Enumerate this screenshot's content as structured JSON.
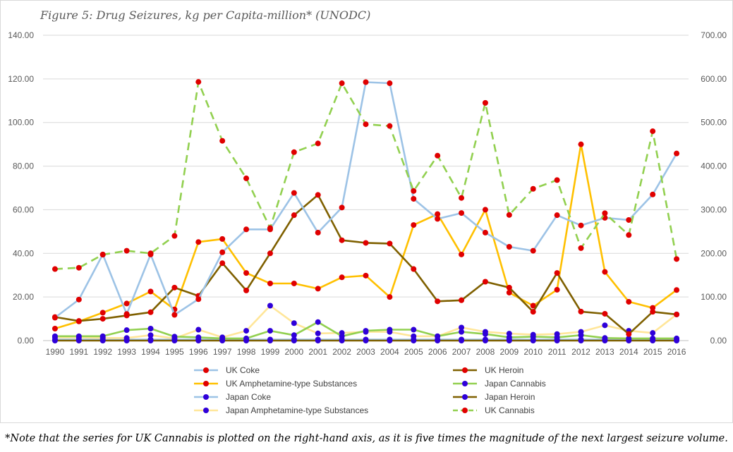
{
  "figure": {
    "title": "Figure 5: Drug Seizures, kg per Capita-million* (UNODC)",
    "footnote": "*Note that the series for UK Cannabis is plotted on the right-hand axis, as it is five times the magnitude of the next largest seizure volume."
  },
  "chart_data": {
    "type": "line",
    "title": "Figure 5: Drug Seizures, kg per Capita-million* (UNODC)",
    "categories": [
      "1990",
      "1991",
      "1992",
      "1993",
      "1994",
      "1995",
      "1996",
      "1997",
      "1998",
      "1999",
      "2000",
      "2001",
      "2002",
      "2003",
      "2004",
      "2005",
      "2006",
      "2007",
      "2008",
      "2009",
      "2010",
      "2011",
      "2012",
      "2013",
      "2014",
      "2015",
      "2016"
    ],
    "y_left": {
      "min": 0,
      "max": 140,
      "step": 20,
      "tick_labels": [
        "0.00",
        "20.00",
        "40.00",
        "60.00",
        "80.00",
        "100.00",
        "120.00",
        "140.00"
      ]
    },
    "y_right": {
      "min": 0,
      "max": 700,
      "step": 100,
      "tick_labels": [
        "0.00",
        "100.00",
        "200.00",
        "300.00",
        "400.00",
        "500.00",
        "600.00",
        "700.00"
      ]
    },
    "grid": true,
    "legend_position": "bottom",
    "series": [
      {
        "name": "UK Coke",
        "axis": "left",
        "line_color": "#9dc3e6",
        "marker_color": "#e00000",
        "dashed": false,
        "values": [
          10.5,
          18.8,
          39.5,
          12.2,
          39.5,
          11.8,
          19,
          40.5,
          51,
          51,
          67.7,
          49.5,
          61,
          118.5,
          118,
          65,
          55.8,
          58.5,
          49.5,
          43,
          41.2,
          57.5,
          52.8,
          56.3,
          55.3,
          67,
          85.8
        ]
      },
      {
        "name": "UK Heroin",
        "axis": "left",
        "line_color": "#7f6000",
        "marker_color": "#e00000",
        "dashed": false,
        "values": [
          10.8,
          9,
          10,
          11.5,
          13,
          24.3,
          20.5,
          35.5,
          23,
          40,
          57.5,
          66.8,
          46,
          44.8,
          44.5,
          32.8,
          18,
          18.5,
          27,
          24.3,
          13.2,
          31,
          13.3,
          12.3,
          3,
          13.2,
          12
        ]
      },
      {
        "name": "UK Amphetamine-type Substances",
        "axis": "left",
        "line_color": "#ffc000",
        "marker_color": "#e00000",
        "dashed": false,
        "values": [
          5.5,
          8.8,
          12.8,
          17,
          22.5,
          14.3,
          45.2,
          46.6,
          31,
          26.2,
          26.2,
          23.8,
          29,
          29.8,
          20,
          53,
          58,
          39.5,
          60,
          22,
          16,
          23.3,
          90,
          31.5,
          17.8,
          15,
          23.2
        ]
      },
      {
        "name": "Japan Cannabis",
        "axis": "left",
        "line_color": "#92d050",
        "marker_color": "#2f00d9",
        "dashed": false,
        "values": [
          2,
          2,
          2,
          4.8,
          5.5,
          1.8,
          1.5,
          1,
          1,
          4.5,
          2.5,
          8.5,
          2,
          4.5,
          5,
          5,
          2,
          4,
          3,
          1.5,
          1.8,
          1.5,
          2.5,
          1.2,
          1,
          1,
          1
        ]
      },
      {
        "name": "Japan Coke",
        "axis": "left",
        "line_color": "#9dc3e6",
        "marker_color": "#2f00d9",
        "dashed": false,
        "values": [
          0.5,
          0.5,
          0.5,
          0.5,
          0.5,
          0.5,
          0.5,
          0.5,
          0.5,
          0.5,
          0.5,
          0.5,
          0.5,
          0.5,
          0.5,
          0.5,
          0.5,
          0.5,
          0.5,
          0.5,
          0.5,
          0.5,
          0.5,
          0.5,
          0.5,
          0.5,
          0.5
        ]
      },
      {
        "name": "Japan Heroin",
        "axis": "left",
        "line_color": "#7f6000",
        "marker_color": "#2f00d9",
        "dashed": false,
        "values": [
          0,
          0,
          0,
          0,
          0,
          0,
          0,
          0,
          0,
          0,
          0,
          0,
          0,
          0,
          0,
          0,
          0,
          0,
          0,
          0,
          0,
          0,
          0,
          0,
          0,
          0,
          0
        ]
      },
      {
        "name": "Japan Amphetamine-type Substances",
        "axis": "left",
        "line_color": "#ffe699",
        "marker_color": "#2f00d9",
        "dashed": false,
        "values": [
          1.5,
          1.5,
          1.2,
          1.2,
          2.5,
          1,
          5,
          1.5,
          4.5,
          16,
          8,
          3.3,
          3.5,
          4,
          4,
          2,
          2,
          6,
          4,
          3.2,
          2.7,
          3,
          4,
          7,
          4.5,
          3.5,
          12
        ]
      },
      {
        "name": "UK Cannabis",
        "axis": "right",
        "line_color": "#92d050",
        "marker_color": "#e00000",
        "dashed": true,
        "values": [
          164,
          167,
          197,
          206,
          200,
          240,
          593,
          458,
          372,
          258,
          432,
          452,
          590,
          496,
          492,
          343,
          424,
          327,
          545,
          288,
          348,
          368,
          212,
          292,
          242,
          480,
          187
        ]
      }
    ]
  }
}
